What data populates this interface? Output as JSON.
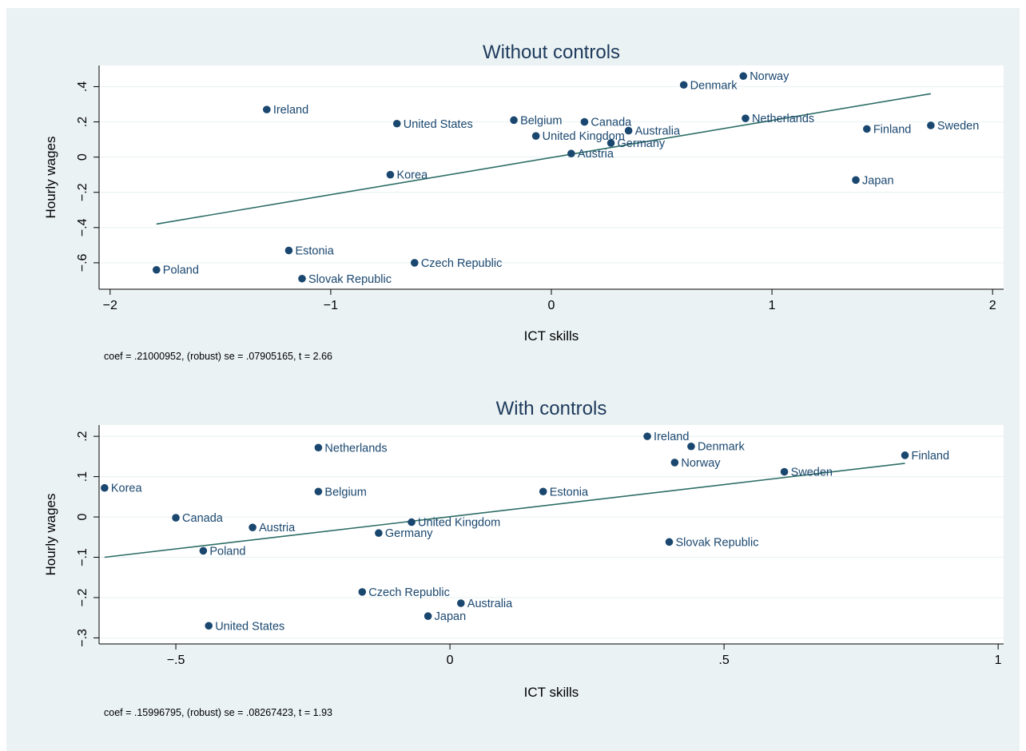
{
  "colors": {
    "background": "#eaf2f3",
    "plot_region": "#ffffff",
    "grid": "#eaf2f3",
    "marker": "#1a476f",
    "fit_line": "#2d6d66",
    "title": "#1e3a5c"
  },
  "chart_data": [
    {
      "type": "scatter",
      "title": "Without controls",
      "xlabel": "ICT skills",
      "ylabel": "Hourly wages",
      "xlim": [
        -2.05,
        2.05
      ],
      "ylim": [
        -0.75,
        0.52
      ],
      "xticks": [
        -2,
        -1,
        0,
        1,
        2
      ],
      "xtick_labels": [
        "−2",
        "−1",
        "0",
        "1",
        "2"
      ],
      "yticks": [
        -0.6,
        -0.4,
        -0.2,
        0,
        0.2,
        0.4
      ],
      "ytick_labels": [
        "−.6",
        "−.4",
        "−.2",
        "0",
        ".2",
        ".4"
      ],
      "grid": true,
      "legend": "none",
      "points": [
        {
          "label": "Norway",
          "x": 0.87,
          "y": 0.46
        },
        {
          "label": "Denmark",
          "x": 0.6,
          "y": 0.41
        },
        {
          "label": "Ireland",
          "x": -1.29,
          "y": 0.27
        },
        {
          "label": "United States",
          "x": -0.7,
          "y": 0.19
        },
        {
          "label": "Belgium",
          "x": -0.17,
          "y": 0.21
        },
        {
          "label": "Canada",
          "x": 0.15,
          "y": 0.2
        },
        {
          "label": "Netherlands",
          "x": 0.88,
          "y": 0.22
        },
        {
          "label": "Australia",
          "x": 0.35,
          "y": 0.15
        },
        {
          "label": "Finland",
          "x": 1.43,
          "y": 0.16
        },
        {
          "label": "Sweden",
          "x": 1.72,
          "y": 0.18
        },
        {
          "label": "United Kingdom",
          "x": -0.07,
          "y": 0.12
        },
        {
          "label": "Germany",
          "x": 0.27,
          "y": 0.08
        },
        {
          "label": "Austria",
          "x": 0.09,
          "y": 0.02
        },
        {
          "label": "Korea",
          "x": -0.73,
          "y": -0.1
        },
        {
          "label": "Japan",
          "x": 1.38,
          "y": -0.13
        },
        {
          "label": "Estonia",
          "x": -1.19,
          "y": -0.53
        },
        {
          "label": "Czech Republic",
          "x": -0.62,
          "y": -0.6
        },
        {
          "label": "Poland",
          "x": -1.79,
          "y": -0.64
        },
        {
          "label": "Slovak Republic",
          "x": -1.13,
          "y": -0.69
        }
      ],
      "fit": {
        "x": [
          -1.79,
          1.72
        ],
        "y": [
          -0.38,
          0.36
        ]
      },
      "note": "coef = .21000952, (robust) se = .07905165, t = 2.66"
    },
    {
      "type": "scatter",
      "title": "With controls",
      "xlabel": "ICT skills",
      "ylabel": "Hourly wages",
      "xlim": [
        -0.64,
        1.01
      ],
      "ylim": [
        -0.315,
        0.228
      ],
      "xticks": [
        -0.5,
        0,
        0.5,
        1
      ],
      "xtick_labels": [
        "−.5",
        "0",
        ".5",
        "1"
      ],
      "yticks": [
        -0.3,
        -0.2,
        -0.1,
        0,
        0.1,
        0.2
      ],
      "ytick_labels": [
        "−.3",
        "−.2",
        "−.1",
        "0",
        ".1",
        ".2"
      ],
      "grid": true,
      "legend": "none",
      "points": [
        {
          "label": "Ireland",
          "x": 0.36,
          "y": 0.2
        },
        {
          "label": "Denmark",
          "x": 0.44,
          "y": 0.175
        },
        {
          "label": "Netherlands",
          "x": -0.24,
          "y": 0.172
        },
        {
          "label": "Finland",
          "x": 0.83,
          "y": 0.153
        },
        {
          "label": "Norway",
          "x": 0.41,
          "y": 0.135
        },
        {
          "label": "Sweden",
          "x": 0.61,
          "y": 0.112
        },
        {
          "label": "Korea",
          "x": -0.63,
          "y": 0.072
        },
        {
          "label": "Belgium",
          "x": -0.24,
          "y": 0.063
        },
        {
          "label": "Estonia",
          "x": 0.17,
          "y": 0.063
        },
        {
          "label": "Canada",
          "x": -0.5,
          "y": -0.002
        },
        {
          "label": "United Kingdom",
          "x": -0.07,
          "y": -0.013
        },
        {
          "label": "Austria",
          "x": -0.36,
          "y": -0.026
        },
        {
          "label": "Germany",
          "x": -0.13,
          "y": -0.04
        },
        {
          "label": "Slovak Republic",
          "x": 0.4,
          "y": -0.062
        },
        {
          "label": "Poland",
          "x": -0.45,
          "y": -0.084
        },
        {
          "label": "Czech Republic",
          "x": -0.16,
          "y": -0.186
        },
        {
          "label": "Australia",
          "x": 0.02,
          "y": -0.214
        },
        {
          "label": "Japan",
          "x": -0.04,
          "y": -0.246
        },
        {
          "label": "United States",
          "x": -0.44,
          "y": -0.27
        }
      ],
      "fit": {
        "x": [
          -0.63,
          0.83
        ],
        "y": [
          -0.1,
          0.133
        ]
      },
      "note": "coef = .15996795, (robust) se = .08267423, t = 1.93"
    }
  ]
}
